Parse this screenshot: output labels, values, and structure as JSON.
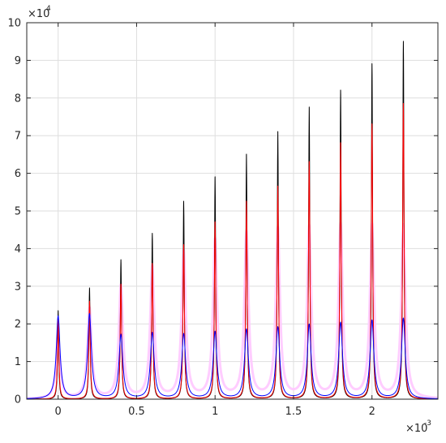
{
  "chart_data": {
    "type": "line",
    "title": "",
    "xlabel": "",
    "ylabel": "",
    "xlim": [
      -0.0002,
      0.00242
    ],
    "ylim": [
      0,
      100000
    ],
    "grid": true,
    "x_ticks": [
      0,
      0.0005,
      0.001,
      0.0015,
      0.002
    ],
    "x_tick_labels": [
      "0",
      "0.5",
      "1",
      "1.5",
      "2"
    ],
    "x_multiplier": {
      "base": "×10",
      "exponent": "-3"
    },
    "y_ticks": [
      0,
      10000,
      20000,
      30000,
      40000,
      50000,
      60000,
      70000,
      80000,
      90000,
      100000
    ],
    "y_tick_labels": [
      "0",
      "1",
      "2",
      "3",
      "4",
      "5",
      "6",
      "7",
      "8",
      "9",
      "10"
    ],
    "y_multiplier": {
      "base": "×10",
      "exponent": "4"
    },
    "peak_positions": [
      0,
      0.0002,
      0.0004,
      0.0006,
      0.0008,
      0.001,
      0.0012,
      0.0014,
      0.0016,
      0.0018,
      0.002,
      0.0022
    ],
    "series": [
      {
        "color": "#ffc8ff",
        "peaks": [
          16000,
          24000,
          30000,
          35000,
          39000,
          42000,
          44000,
          45000,
          45500,
          46000,
          46000,
          46000
        ]
      },
      {
        "color": "#000000",
        "peaks": [
          23500,
          29500,
          37000,
          44000,
          52500,
          59000,
          65000,
          71000,
          77500,
          82000,
          89000,
          95000
        ]
      },
      {
        "color": "#ff0000",
        "peaks": [
          21000,
          26000,
          30500,
          36000,
          41000,
          47000,
          52500,
          56500,
          63000,
          68000,
          73000,
          78500
        ]
      },
      {
        "color": "#0000ff",
        "peaks": [
          22000,
          22500,
          17000,
          17500,
          17200,
          17800,
          18400,
          19000,
          19700,
          20200,
          20800,
          21400
        ]
      }
    ]
  }
}
